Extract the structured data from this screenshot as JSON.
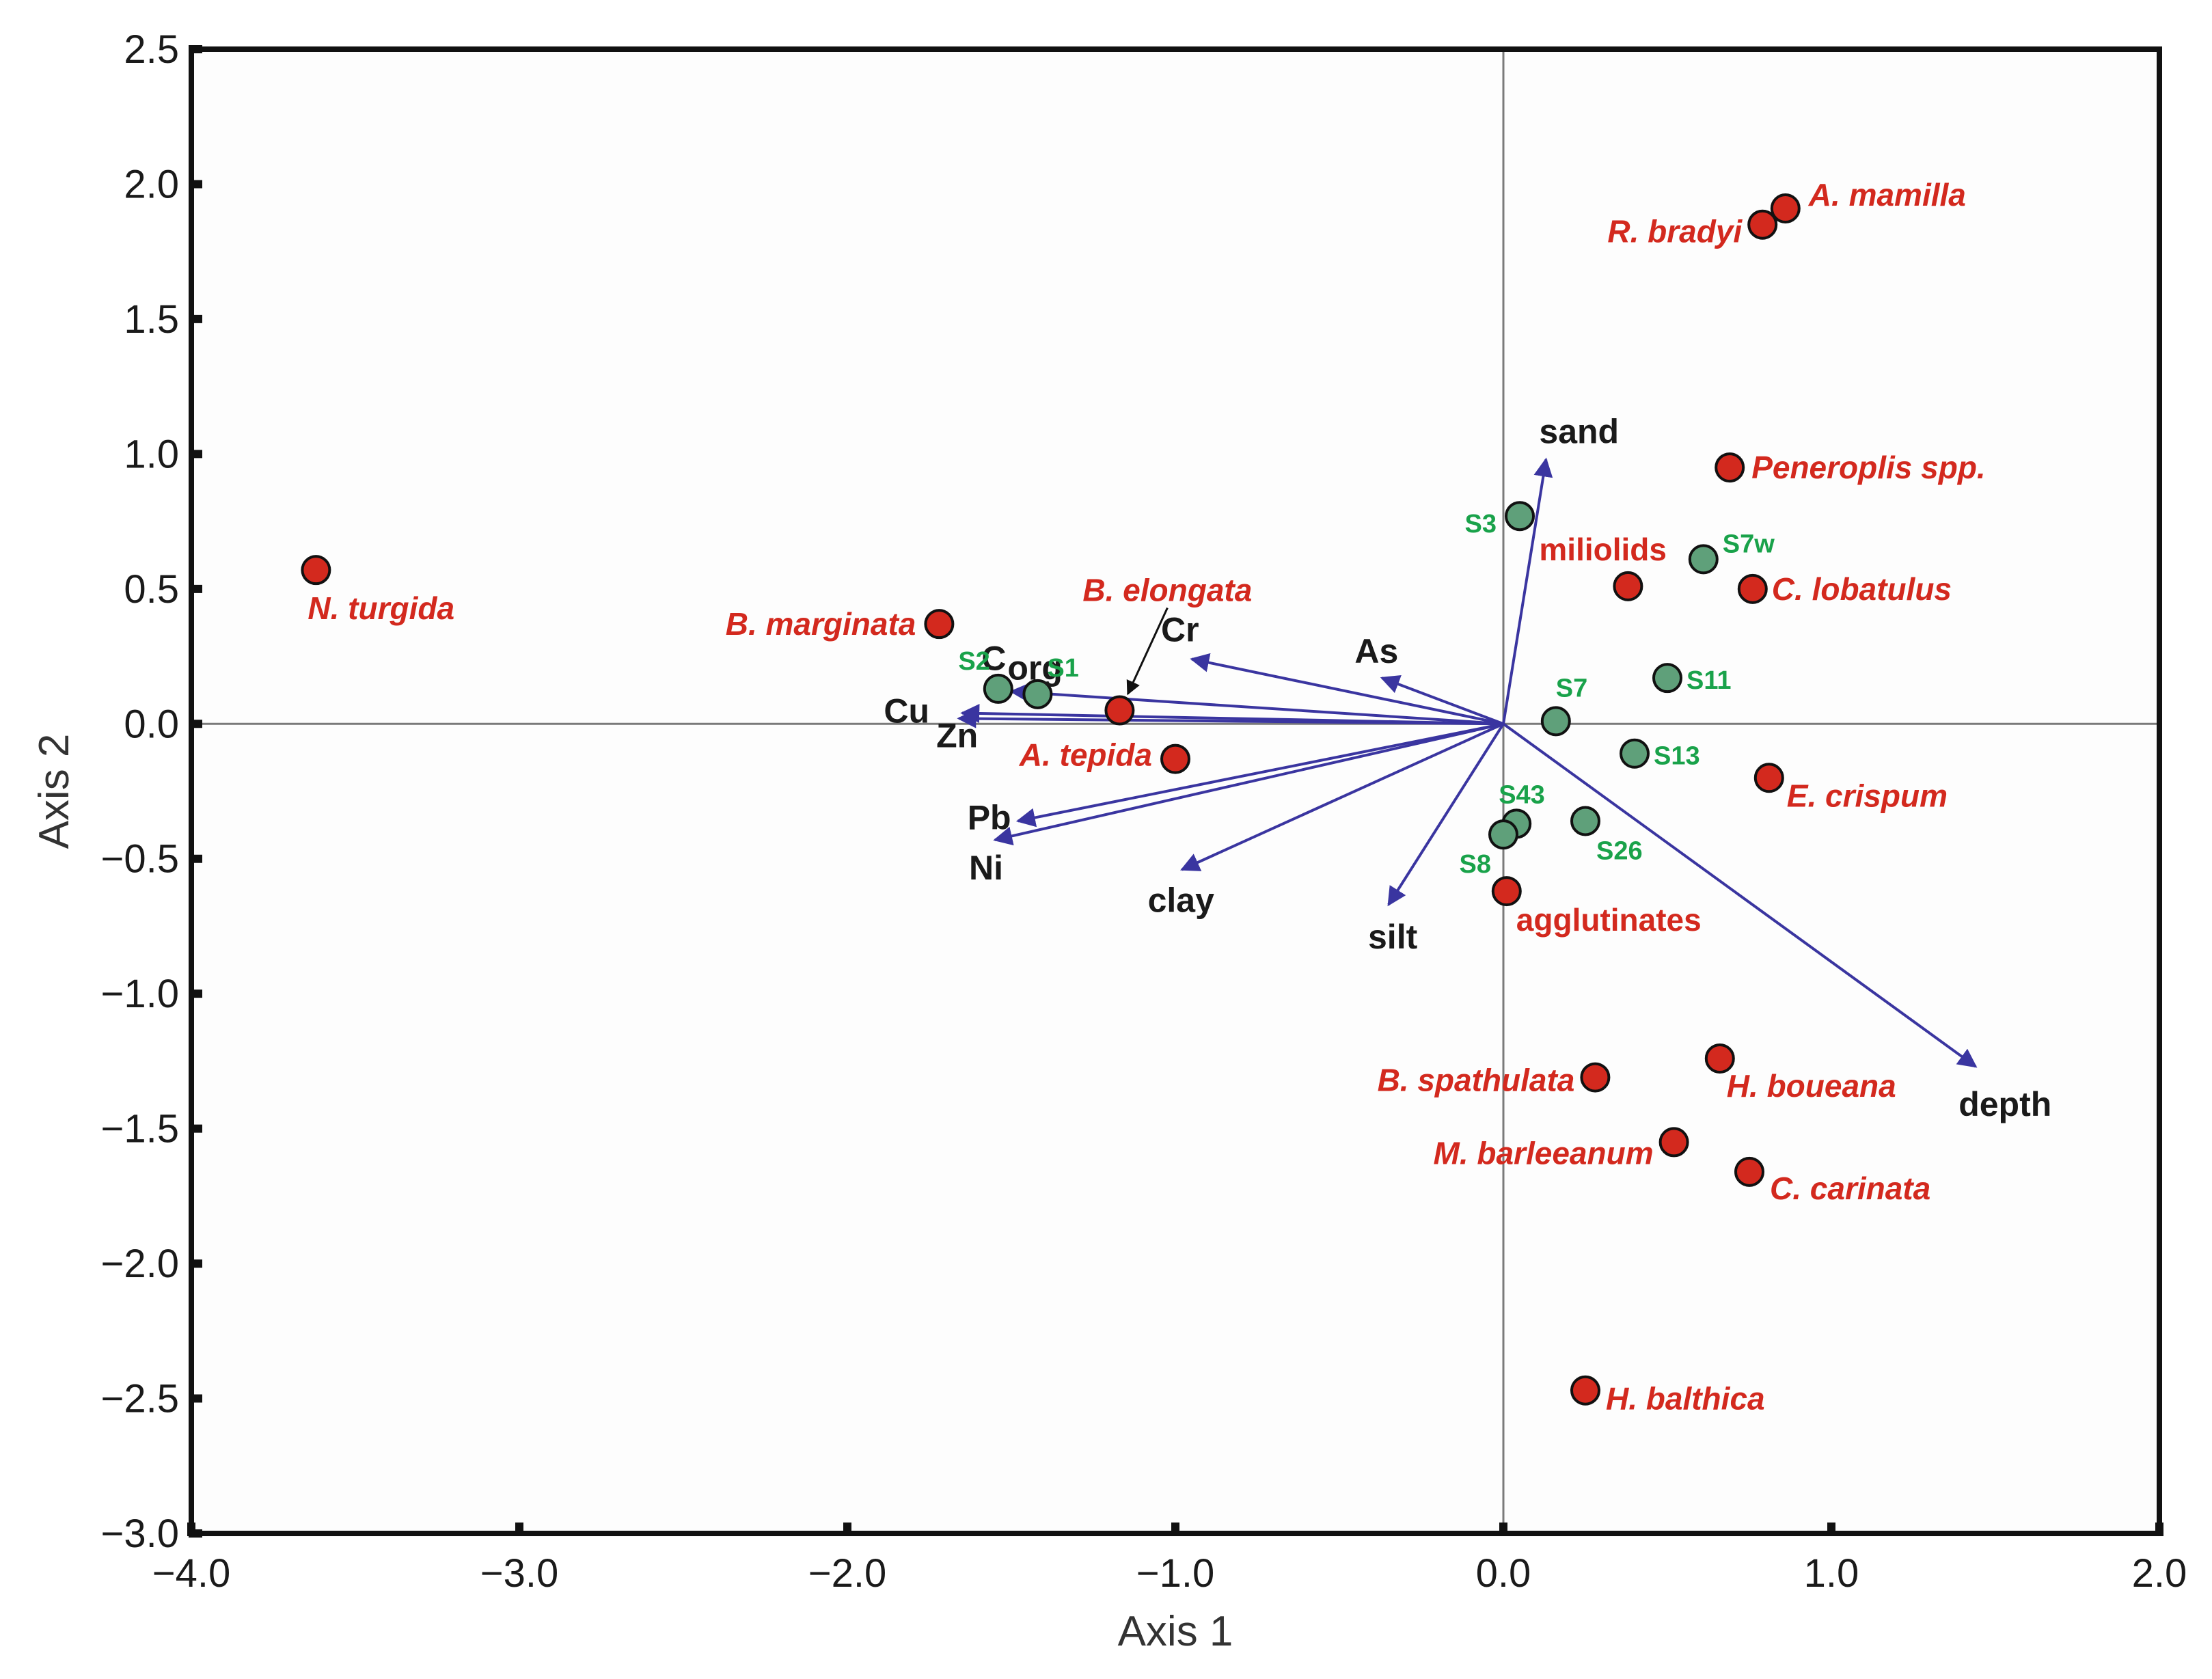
{
  "colors": {
    "species": "#d3291e",
    "station": "#5fa07a",
    "station_text": "#19a24a",
    "vector": "#3a35a0",
    "axis_box": "#111111"
  },
  "chart_data": {
    "type": "scatter",
    "title": "",
    "xlabel": "Axis 1",
    "ylabel": "Axis 2",
    "xlim": [
      -4.0,
      2.0
    ],
    "ylim": [
      -3.0,
      2.5
    ],
    "xticks": [
      -4.0,
      -3.0,
      -2.0,
      -1.0,
      0.0,
      1.0,
      2.0
    ],
    "xtick_labels": [
      "−4.0",
      "−3.0",
      "−2.0",
      "−1.0",
      "0.0",
      "1.0",
      "2.0"
    ],
    "yticks": [
      2.5,
      2.0,
      1.5,
      1.0,
      0.5,
      0.0,
      -0.5,
      -1.0,
      -1.5,
      -2.0,
      -2.5,
      -3.0
    ],
    "ytick_labels": [
      "2.5",
      "2.0",
      "1.5",
      "1.0",
      "0.5",
      "0.0",
      "−0.5",
      "−1.0",
      "−1.5",
      "−2.0",
      "−2.5",
      "−3.0"
    ],
    "species": [
      {
        "name": "N. turgida",
        "x": -3.62,
        "y": 0.57,
        "italic": true
      },
      {
        "name": "B. marginata",
        "x": -1.72,
        "y": 0.37,
        "italic": true
      },
      {
        "name": "B. elongata",
        "x": -1.17,
        "y": 0.05,
        "italic": true
      },
      {
        "name": "A. tepida",
        "x": -1.0,
        "y": -0.13,
        "italic": true
      },
      {
        "name": "A. mamilla",
        "x": 0.86,
        "y": 1.91,
        "italic": true
      },
      {
        "name": "R. bradyi",
        "x": 0.79,
        "y": 1.85,
        "italic": true
      },
      {
        "name": "Peneroplis spp.",
        "x": 0.69,
        "y": 0.95,
        "italic": true
      },
      {
        "name": "miliolids",
        "x": 0.38,
        "y": 0.51,
        "italic": false
      },
      {
        "name": "C. lobatulus",
        "x": 0.76,
        "y": 0.5,
        "italic": true
      },
      {
        "name": "E. crispum",
        "x": 0.81,
        "y": -0.2,
        "italic": true
      },
      {
        "name": "agglutinates",
        "x": 0.01,
        "y": -0.62,
        "italic": false
      },
      {
        "name": "H. boueana",
        "x": 0.66,
        "y": -1.24,
        "italic": true
      },
      {
        "name": "B. spathulata",
        "x": 0.28,
        "y": -1.31,
        "italic": true
      },
      {
        "name": "M. barleeanum",
        "x": 0.52,
        "y": -1.55,
        "italic": true
      },
      {
        "name": "C. carinata",
        "x": 0.75,
        "y": -1.66,
        "italic": true
      },
      {
        "name": "H. balthica",
        "x": 0.25,
        "y": -2.47,
        "italic": true
      }
    ],
    "stations": [
      {
        "name": "S1",
        "x": -1.42,
        "y": 0.11
      },
      {
        "name": "S2",
        "x": -1.54,
        "y": 0.13
      },
      {
        "name": "S3",
        "x": 0.05,
        "y": 0.77
      },
      {
        "name": "S7w",
        "x": 0.61,
        "y": 0.61
      },
      {
        "name": "S11",
        "x": 0.5,
        "y": 0.17
      },
      {
        "name": "S7",
        "x": 0.16,
        "y": 0.01
      },
      {
        "name": "S13",
        "x": 0.4,
        "y": -0.11
      },
      {
        "name": "S43",
        "x": 0.04,
        "y": -0.37
      },
      {
        "name": "S8",
        "x": 0.0,
        "y": -0.41
      },
      {
        "name": "S26",
        "x": 0.25,
        "y": -0.36
      }
    ],
    "env_vectors": [
      {
        "name": "sand",
        "x": 0.13,
        "y": 0.98
      },
      {
        "name": "As",
        "x": -0.37,
        "y": 0.17
      },
      {
        "name": "Cr",
        "x": -0.95,
        "y": 0.24
      },
      {
        "name": "Corg",
        "x": -1.5,
        "y": 0.12
      },
      {
        "name": "Cu",
        "x": -1.65,
        "y": 0.04
      },
      {
        "name": "Zn",
        "x": -1.66,
        "y": 0.02
      },
      {
        "name": "Pb",
        "x": -1.48,
        "y": -0.36
      },
      {
        "name": "Ni",
        "x": -1.55,
        "y": -0.43
      },
      {
        "name": "clay",
        "x": -0.98,
        "y": -0.54
      },
      {
        "name": "silt",
        "x": -0.35,
        "y": -0.67
      },
      {
        "name": "depth",
        "x": 1.44,
        "y": -1.27
      }
    ],
    "env_text": {
      "sand": "sand",
      "As": "As",
      "Cr": "Cr",
      "C_main": "C",
      "C_sub": "org",
      "Cu": "Cu",
      "Zn": "Zn",
      "Pb": "Pb",
      "Ni": "Ni",
      "clay": "clay",
      "silt": "silt",
      "depth": "depth"
    }
  }
}
